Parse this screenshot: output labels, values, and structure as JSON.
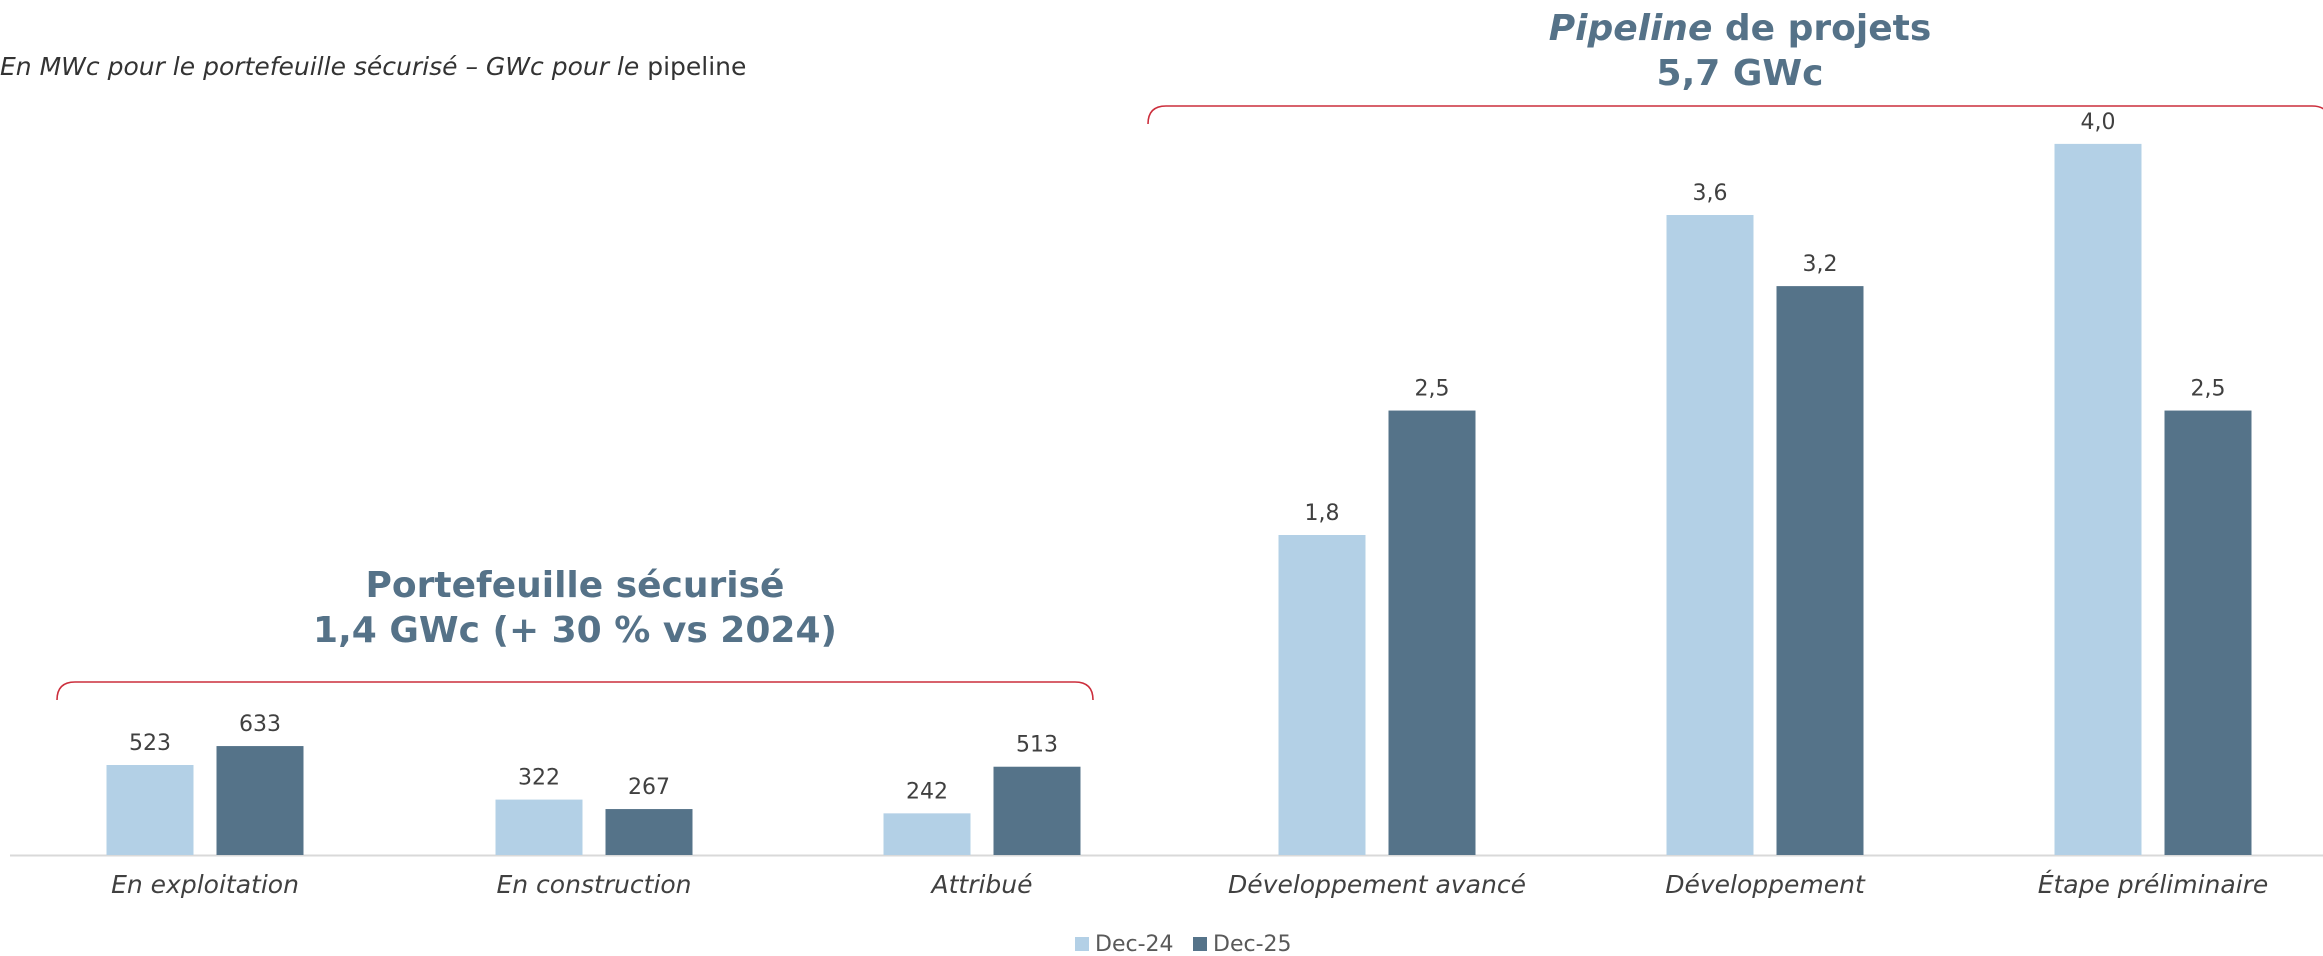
{
  "subtitle": {
    "part1": "En MWc pour le portefeuille sécurisé – GWc pour le",
    "part2": " pipeline"
  },
  "groups": {
    "secured": {
      "line1": "Portefeuille sécurisé",
      "line2": "1,4 GWc (+ 30 % vs 2024)"
    },
    "pipeline": {
      "line1_italic": "Pipeline",
      "line1_rest": " de projets",
      "line2": "5,7 GWc"
    }
  },
  "colors": {
    "dec24": "#b3d0e6",
    "dec25": "#557389",
    "bracket": "#cc2e3c",
    "title": "#557288"
  },
  "chart_data": [
    {
      "type": "bar",
      "title": "Portefeuille sécurisé 1,4 GWc (+ 30 % vs 2024)",
      "unit": "MWc",
      "categories": [
        "En exploitation",
        "En construction",
        "Attribué"
      ],
      "series": [
        {
          "name": "Dec-24",
          "values": [
            523,
            322,
            242
          ],
          "labels": [
            "523",
            "322",
            "242"
          ]
        },
        {
          "name": "Dec-25",
          "values": [
            633,
            267,
            513
          ],
          "labels": [
            "633",
            "267",
            "513"
          ]
        }
      ]
    },
    {
      "type": "bar",
      "title": "Pipeline de projets 5,7 GWc",
      "unit": "GWc",
      "categories": [
        "Développement avancé",
        "Développement",
        "Étape préliminaire"
      ],
      "series": [
        {
          "name": "Dec-24",
          "values": [
            1.8,
            3.6,
            4.0
          ],
          "labels": [
            "1,8",
            "3,6",
            "4,0"
          ]
        },
        {
          "name": "Dec-25",
          "values": [
            2.5,
            3.2,
            2.5
          ],
          "labels": [
            "2,5",
            "3,2",
            "2,5"
          ]
        }
      ]
    }
  ],
  "legend": [
    {
      "label": "Dec-24"
    },
    {
      "label": "Dec-25"
    }
  ]
}
